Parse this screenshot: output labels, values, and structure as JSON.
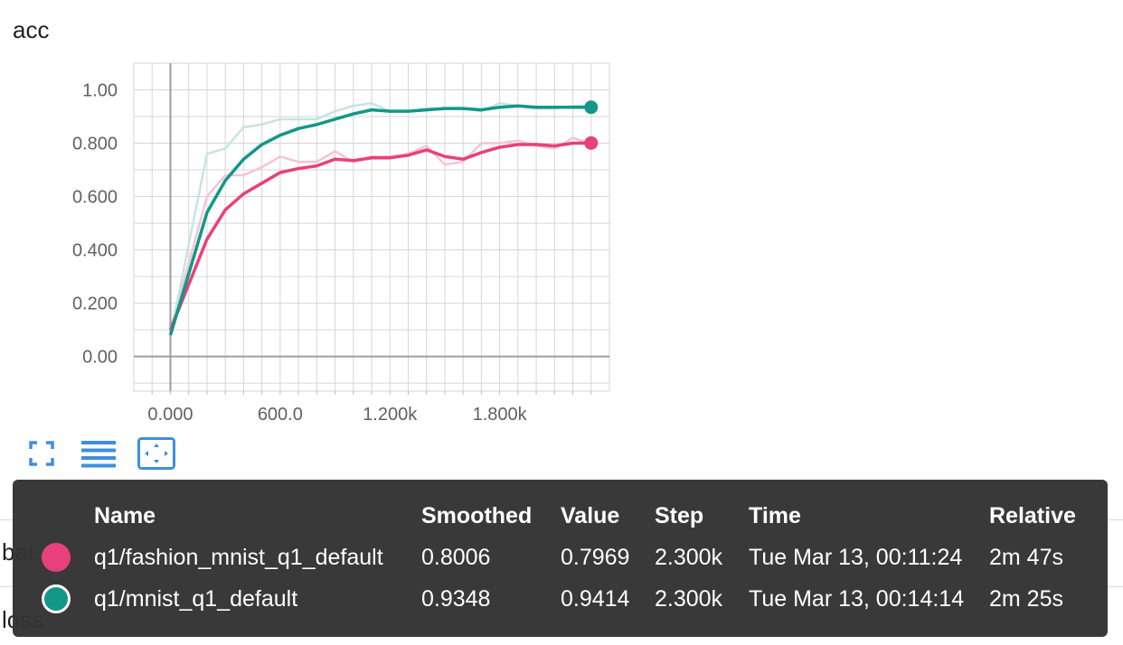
{
  "chart_data": {
    "type": "line",
    "title": "acc",
    "x_ticks": [
      "0.000",
      "600.0",
      "1.200k",
      "1.800k"
    ],
    "y_ticks": [
      "0.00",
      "0.200",
      "0.400",
      "0.600",
      "0.800",
      "1.00"
    ],
    "xlim": [
      -200,
      2400
    ],
    "ylim": [
      -0.13,
      1.1
    ],
    "grid": true,
    "series": [
      {
        "name": "q1/fashion_mnist_q1_default",
        "color": "#e8407b",
        "raw_color": "#f6c3d6",
        "x": [
          0,
          200,
          300,
          400,
          500,
          600,
          700,
          800,
          900,
          1000,
          1100,
          1200,
          1300,
          1400,
          1500,
          1600,
          1700,
          1800,
          1900,
          2000,
          2100,
          2200,
          2300
        ],
        "raw_values": [
          0.1,
          0.6,
          0.68,
          0.68,
          0.71,
          0.75,
          0.73,
          0.73,
          0.77,
          0.73,
          0.75,
          0.75,
          0.76,
          0.79,
          0.72,
          0.73,
          0.8,
          0.8,
          0.81,
          0.79,
          0.78,
          0.82,
          0.7969
        ],
        "smoothed_values": [
          0.1,
          0.44,
          0.55,
          0.61,
          0.65,
          0.69,
          0.705,
          0.715,
          0.74,
          0.735,
          0.745,
          0.745,
          0.755,
          0.775,
          0.75,
          0.74,
          0.765,
          0.785,
          0.795,
          0.795,
          0.79,
          0.8,
          0.8006
        ]
      },
      {
        "name": "q1/mnist_q1_default",
        "color": "#139787",
        "raw_color": "#c5e5e1",
        "x": [
          0,
          200,
          300,
          400,
          500,
          600,
          700,
          800,
          900,
          1000,
          1100,
          1200,
          1300,
          1400,
          1500,
          1600,
          1700,
          1800,
          1900,
          2000,
          2100,
          2200,
          2300
        ],
        "raw_values": [
          0.08,
          0.76,
          0.78,
          0.86,
          0.87,
          0.89,
          0.89,
          0.89,
          0.92,
          0.94,
          0.95,
          0.92,
          0.92,
          0.93,
          0.93,
          0.93,
          0.92,
          0.95,
          0.94,
          0.93,
          0.93,
          0.94,
          0.9414
        ],
        "smoothed_values": [
          0.08,
          0.54,
          0.66,
          0.74,
          0.795,
          0.83,
          0.855,
          0.87,
          0.89,
          0.91,
          0.925,
          0.92,
          0.92,
          0.925,
          0.93,
          0.93,
          0.925,
          0.935,
          0.94,
          0.935,
          0.935,
          0.935,
          0.9348
        ]
      }
    ]
  },
  "toolbar": {
    "expand_icon": "expand-icon",
    "data_selection_icon": "list-icon",
    "fit_domain_icon": "fit-domain-icon"
  },
  "background_labels": {
    "batch": "bat",
    "loss": "loss"
  },
  "tooltip": {
    "headers": {
      "name": "Name",
      "smoothed": "Smoothed",
      "value": "Value",
      "step": "Step",
      "time": "Time",
      "relative": "Relative"
    },
    "rows": [
      {
        "color": "#e8407b",
        "name": "q1/fashion_mnist_q1_default",
        "smoothed": "0.8006",
        "value": "0.7969",
        "step": "2.300k",
        "time": "Tue Mar 13, 00:11:24",
        "relative": "2m 47s"
      },
      {
        "color": "#139787",
        "name": "q1/mnist_q1_default",
        "smoothed": "0.9348",
        "value": "0.9414",
        "step": "2.300k",
        "time": "Tue Mar 13, 00:14:14",
        "relative": "2m 25s"
      }
    ]
  }
}
